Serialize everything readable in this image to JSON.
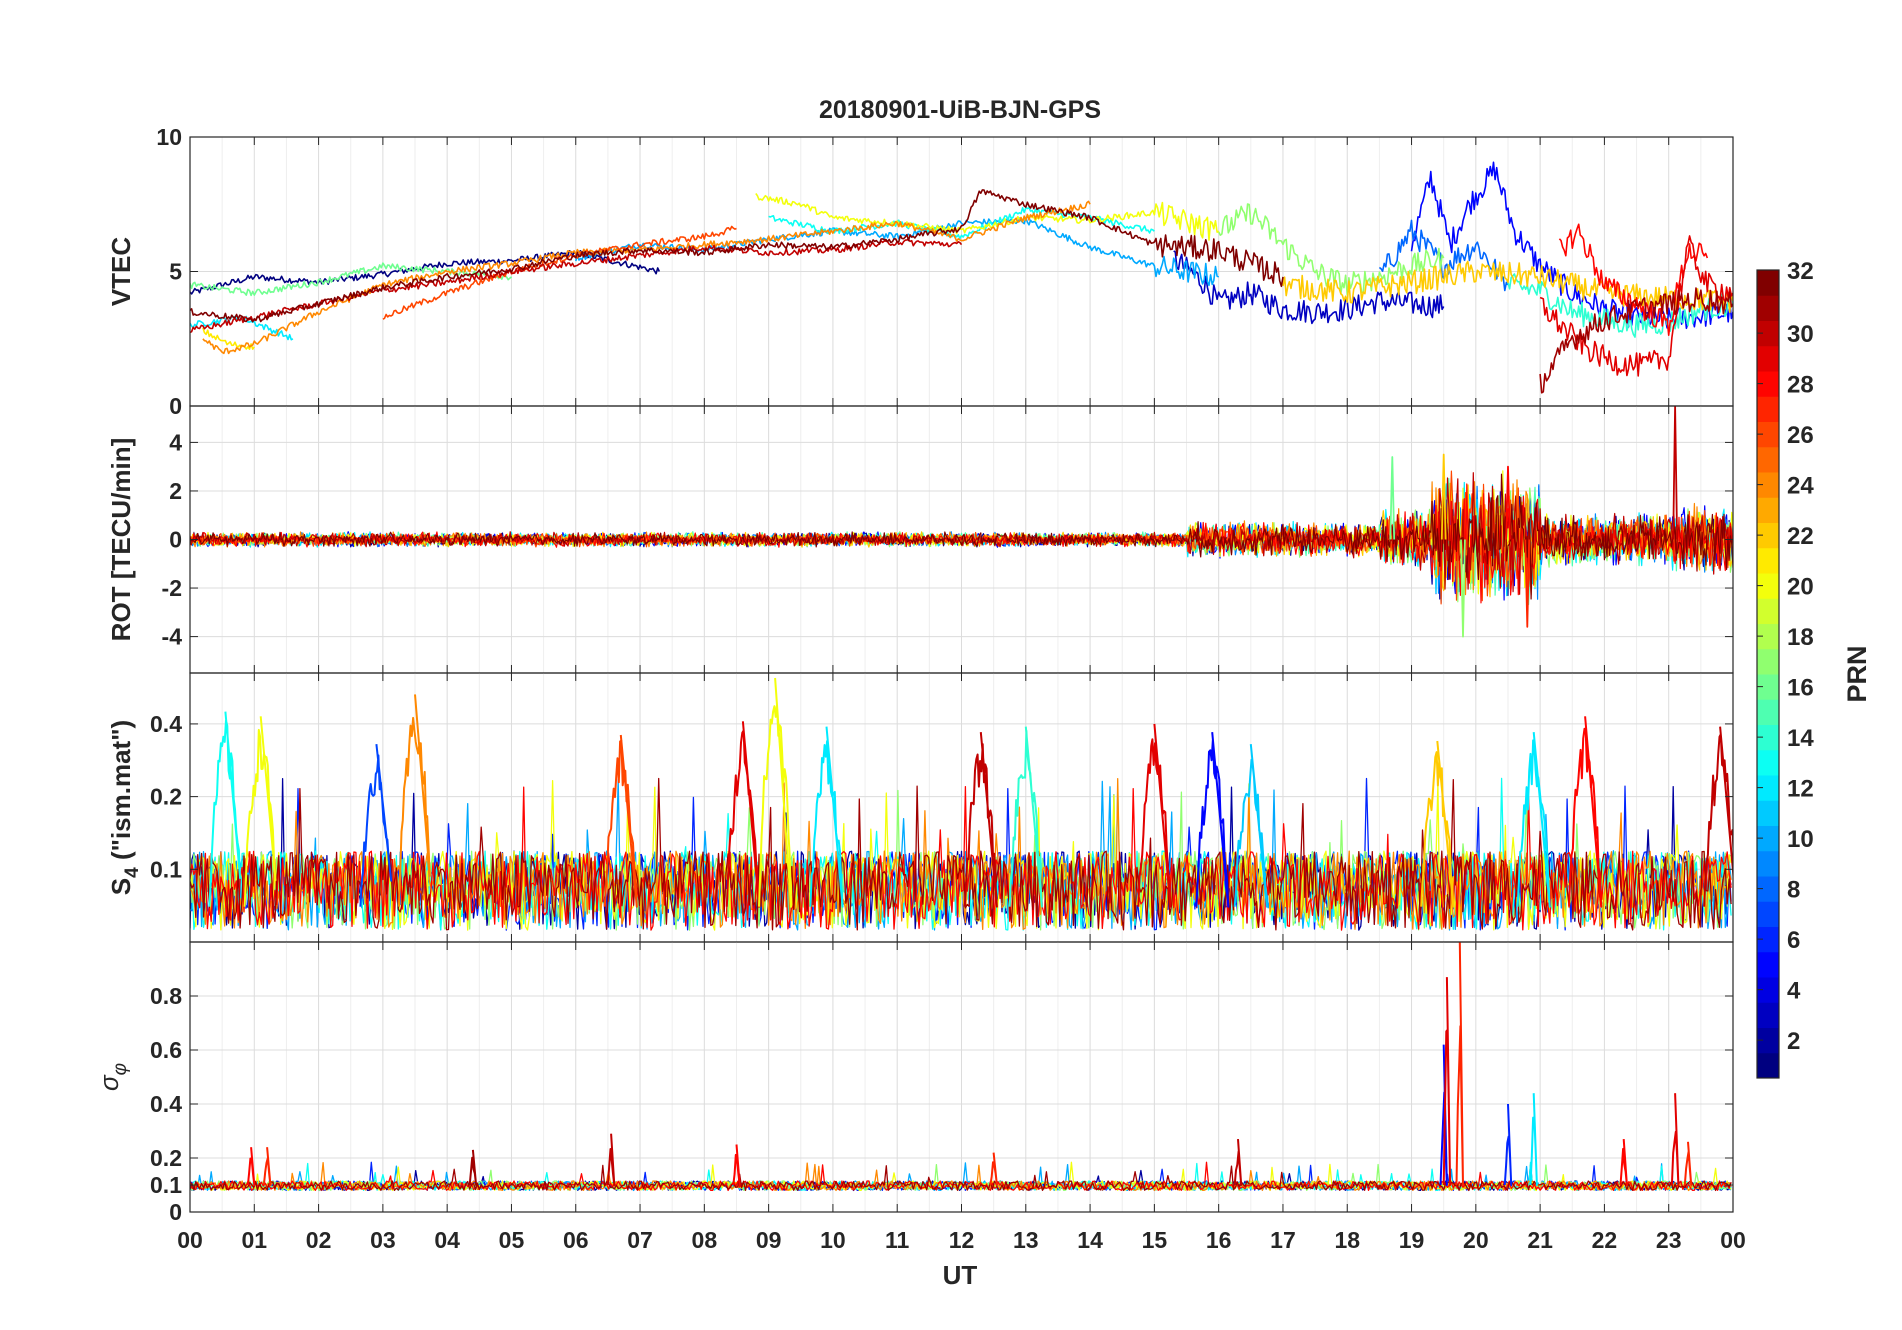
{
  "figure": {
    "title": "20180901-UiB-BJN-GPS",
    "xlabel": "UT",
    "x_tick_labels": [
      "00",
      "01",
      "02",
      "03",
      "04",
      "05",
      "06",
      "07",
      "08",
      "09",
      "10",
      "11",
      "12",
      "13",
      "14",
      "15",
      "16",
      "17",
      "18",
      "19",
      "20",
      "21",
      "22",
      "23",
      "00"
    ],
    "colorbar": {
      "label": "PRN",
      "colormap": "jet",
      "range": [
        1,
        32
      ],
      "ticks": [
        2,
        4,
        6,
        8,
        10,
        12,
        14,
        16,
        18,
        20,
        22,
        24,
        26,
        28,
        30,
        32
      ]
    }
  },
  "chart_data": [
    {
      "type": "line",
      "id": "vtec",
      "ylabel": "VTEC",
      "xlim": [
        0,
        24
      ],
      "ylim": [
        0,
        10
      ],
      "yticks": [
        0,
        5,
        10
      ],
      "grid": true,
      "series": [
        {
          "prn": 1,
          "x": [
            0.0,
            1.0,
            2.0,
            3.0,
            4.0,
            5.0,
            6.0,
            7.3
          ],
          "y": [
            4.2,
            4.8,
            4.6,
            4.9,
            5.3,
            5.4,
            5.7,
            5.0
          ]
        },
        {
          "prn": 3,
          "x": [
            15.3,
            15.8,
            16.0,
            16.5,
            17.0,
            17.5,
            18.0,
            18.5,
            19.0,
            19.5
          ],
          "y": [
            5.5,
            4.5,
            3.8,
            4.2,
            3.6,
            3.5,
            3.6,
            3.9,
            3.8,
            3.7
          ]
        },
        {
          "prn": 5,
          "x": [
            19.0,
            19.3,
            19.6,
            19.9,
            20.3,
            20.6,
            21.0,
            21.5,
            22.0,
            22.5,
            23.0,
            24.0
          ],
          "y": [
            6.0,
            8.5,
            6.0,
            7.5,
            8.8,
            6.5,
            5.2,
            4.2,
            3.6,
            3.3,
            3.2,
            3.5
          ]
        },
        {
          "prn": 8,
          "x": [
            18.5,
            19.0,
            19.5,
            20.0,
            20.5
          ],
          "y": [
            4.8,
            6.5,
            5.2,
            6.0,
            4.5
          ]
        },
        {
          "prn": 10,
          "x": [
            6.0,
            7.0,
            8.0,
            9.0,
            10.0,
            11.0,
            12.0,
            13.0,
            14.0,
            15.0,
            16.0
          ],
          "y": [
            5.5,
            6.0,
            5.8,
            6.2,
            6.5,
            6.3,
            6.8,
            6.9,
            5.9,
            5.2,
            4.8
          ]
        },
        {
          "prn": 12,
          "x": [
            0.0,
            0.8,
            1.6
          ],
          "y": [
            3.0,
            3.3,
            2.5
          ]
        },
        {
          "prn": 13,
          "x": [
            9.0,
            10.0,
            11.0,
            12.0,
            13.0,
            14.0,
            15.0
          ],
          "y": [
            7.0,
            6.5,
            6.8,
            6.3,
            7.3,
            7.0,
            6.5
          ]
        },
        {
          "prn": 14,
          "x": [
            20.5,
            21.0,
            21.5,
            22.0,
            22.5,
            23.0,
            23.5,
            24.0
          ],
          "y": [
            4.5,
            4.3,
            3.5,
            3.2,
            3.0,
            3.1,
            3.6,
            3.8
          ]
        },
        {
          "prn": 16,
          "x": [
            0.0,
            1.0,
            2.0,
            3.0,
            4.0,
            5.0
          ],
          "y": [
            4.5,
            4.2,
            4.6,
            5.2,
            5.0,
            4.8
          ]
        },
        {
          "prn": 17,
          "x": [
            16.0,
            16.5,
            17.0,
            17.5,
            18.0,
            18.5,
            19.0,
            19.5
          ],
          "y": [
            6.5,
            7.2,
            6.0,
            5.0,
            4.5,
            4.8,
            5.2,
            5.5
          ]
        },
        {
          "prn": 20,
          "x": [
            8.8,
            9.5,
            10.0,
            11.0,
            12.0,
            13.0,
            14.0,
            15.0,
            16.0
          ],
          "y": [
            7.8,
            7.5,
            7.0,
            6.8,
            6.5,
            7.0,
            6.9,
            7.2,
            6.5
          ]
        },
        {
          "prn": 21,
          "x": [
            0.2,
            0.6,
            1.0
          ],
          "y": [
            2.8,
            2.3,
            2.2
          ]
        },
        {
          "prn": 22,
          "x": [
            17.0,
            18.0,
            19.0,
            20.0,
            21.0,
            22.0,
            23.0,
            24.0
          ],
          "y": [
            4.5,
            4.2,
            4.6,
            5.0,
            4.8,
            4.2,
            4.0,
            3.9
          ]
        },
        {
          "prn": 24,
          "x": [
            0.2,
            0.5,
            1.0,
            2.0,
            3.0,
            4.0,
            5.0,
            6.0,
            7.0,
            8.0,
            9.0,
            10.0,
            11.0,
            12.0,
            13.0,
            14.0
          ],
          "y": [
            2.5,
            2.0,
            2.3,
            3.5,
            4.5,
            5.0,
            5.3,
            5.7,
            5.8,
            6.0,
            6.2,
            6.5,
            6.8,
            6.2,
            7.0,
            7.5
          ]
        },
        {
          "prn": 26,
          "x": [
            3.0,
            4.0,
            5.0,
            6.0,
            7.0,
            8.0,
            8.5
          ],
          "y": [
            3.3,
            4.2,
            5.0,
            5.6,
            6.0,
            6.3,
            6.6
          ]
        },
        {
          "prn": 28,
          "x": [
            21.3,
            21.6,
            22.0,
            22.5,
            23.0,
            23.3,
            23.6
          ],
          "y": [
            5.8,
            6.5,
            4.5,
            3.8,
            3.0,
            5.8,
            5.5
          ]
        },
        {
          "prn": 29,
          "x": [
            21.0,
            21.4,
            21.8,
            22.2,
            22.6,
            23.0,
            23.3,
            23.6,
            24.0
          ],
          "y": [
            3.8,
            2.8,
            2.0,
            1.6,
            1.5,
            1.8,
            6.0,
            4.5,
            4.2
          ]
        },
        {
          "prn": 30,
          "x": [
            0.0,
            1.0,
            2.0,
            3.0,
            4.0,
            5.0,
            6.0,
            7.0,
            8.0,
            9.0,
            10.0,
            11.0,
            12.0
          ],
          "y": [
            2.8,
            3.3,
            3.8,
            4.3,
            4.6,
            5.0,
            5.3,
            5.6,
            5.9,
            5.7,
            5.8,
            6.1,
            6.0
          ]
        },
        {
          "prn": 31,
          "x": [
            21.0,
            21.2,
            21.5,
            22.0,
            22.5,
            23.0,
            23.5,
            24.0
          ],
          "y": [
            0.8,
            1.5,
            2.5,
            3.2,
            3.6,
            3.8,
            4.0,
            3.8
          ]
        },
        {
          "prn": 32,
          "x": [
            0.0,
            1.0,
            2.0,
            3.0,
            4.0,
            5.0,
            6.0,
            7.0,
            8.0,
            9.0,
            10.0,
            11.0,
            12.0,
            12.3,
            13.0,
            14.0,
            15.0,
            16.0,
            17.0
          ],
          "y": [
            3.5,
            3.2,
            3.8,
            4.4,
            4.8,
            5.1,
            5.6,
            5.8,
            5.7,
            6.0,
            5.9,
            6.2,
            6.6,
            8.0,
            7.5,
            7.0,
            6.0,
            5.8,
            4.8
          ]
        }
      ]
    },
    {
      "type": "line",
      "id": "rot",
      "ylabel": "ROT [TECU/min]",
      "xlim": [
        0,
        24
      ],
      "ylim": [
        -5.5,
        5.5
      ],
      "yticks": [
        -4,
        -2,
        0,
        2,
        4
      ],
      "grid": true,
      "noise_envelope": [
        {
          "from": 0.0,
          "to": 15.5,
          "amplitude": 0.25
        },
        {
          "from": 15.5,
          "to": 18.5,
          "amplitude": 0.6
        },
        {
          "from": 18.5,
          "to": 19.3,
          "amplitude": 1.0
        },
        {
          "from": 19.3,
          "to": 21.0,
          "amplitude": 2.2
        },
        {
          "from": 21.0,
          "to": 23.0,
          "amplitude": 0.9
        },
        {
          "from": 23.0,
          "to": 24.0,
          "amplitude": 1.2
        }
      ],
      "peaks": [
        {
          "x": 19.8,
          "y": -4.0,
          "prn": 17
        },
        {
          "x": 19.5,
          "y": 3.5,
          "prn": 22
        },
        {
          "x": 23.1,
          "y": 5.5,
          "prn": 30
        },
        {
          "x": 18.7,
          "y": 3.4,
          "prn": 16
        },
        {
          "x": 20.8,
          "y": -3.6,
          "prn": 27
        },
        {
          "x": 20.5,
          "y": 3.0,
          "prn": 28
        }
      ]
    },
    {
      "type": "line",
      "id": "s4",
      "ylabel": "S4 (\"ism.mat\")",
      "ylabel_main": "S",
      "ylabel_sub": "4",
      "ylabel_rest": " (\"ism.mat\")",
      "y_axis": "logarithmic",
      "xlim": [
        0,
        24
      ],
      "ylim": [
        0.05,
        0.65
      ],
      "yticks": [
        0.1,
        0.2,
        0.4
      ],
      "grid": true,
      "baseline": 0.07,
      "peaks": [
        {
          "x": 0.55,
          "y": 0.45,
          "prn": 13
        },
        {
          "x": 1.1,
          "y": 0.43,
          "prn": 20
        },
        {
          "x": 3.5,
          "y": 0.53,
          "prn": 24
        },
        {
          "x": 2.9,
          "y": 0.33,
          "prn": 7
        },
        {
          "x": 6.7,
          "y": 0.36,
          "prn": 26
        },
        {
          "x": 8.6,
          "y": 0.41,
          "prn": 29
        },
        {
          "x": 9.1,
          "y": 0.62,
          "prn": 20
        },
        {
          "x": 9.9,
          "y": 0.39,
          "prn": 12
        },
        {
          "x": 12.3,
          "y": 0.37,
          "prn": 30
        },
        {
          "x": 13.0,
          "y": 0.39,
          "prn": 14
        },
        {
          "x": 15.0,
          "y": 0.4,
          "prn": 29
        },
        {
          "x": 15.9,
          "y": 0.37,
          "prn": 5
        },
        {
          "x": 16.5,
          "y": 0.33,
          "prn": 11
        },
        {
          "x": 19.4,
          "y": 0.34,
          "prn": 22
        },
        {
          "x": 20.9,
          "y": 0.37,
          "prn": 12
        },
        {
          "x": 21.7,
          "y": 0.43,
          "prn": 28
        },
        {
          "x": 23.8,
          "y": 0.39,
          "prn": 30
        }
      ]
    },
    {
      "type": "line",
      "id": "sigma_phi",
      "ylabel": "σ φ",
      "ylabel_main": "σ",
      "ylabel_sub": "φ",
      "xlim": [
        0,
        24
      ],
      "ylim": [
        0,
        1
      ],
      "yticks": [
        0,
        0.1,
        0.2,
        0.4,
        0.6,
        0.8
      ],
      "ytick_labels": [
        "0",
        "0.1",
        "0.2",
        "0.4",
        "0.6",
        "0.8"
      ],
      "grid": true,
      "baseline": 0.1,
      "peaks": [
        {
          "x": 0.95,
          "y": 0.24,
          "prn": 28
        },
        {
          "x": 1.2,
          "y": 0.24,
          "prn": 27
        },
        {
          "x": 4.4,
          "y": 0.23,
          "prn": 31
        },
        {
          "x": 6.55,
          "y": 0.29,
          "prn": 30
        },
        {
          "x": 8.5,
          "y": 0.25,
          "prn": 28
        },
        {
          "x": 12.5,
          "y": 0.22,
          "prn": 27
        },
        {
          "x": 16.3,
          "y": 0.27,
          "prn": 30
        },
        {
          "x": 19.5,
          "y": 0.62,
          "prn": 5
        },
        {
          "x": 19.55,
          "y": 0.87,
          "prn": 29
        },
        {
          "x": 19.75,
          "y": 1.0,
          "prn": 27
        },
        {
          "x": 20.5,
          "y": 0.4,
          "prn": 6
        },
        {
          "x": 20.9,
          "y": 0.44,
          "prn": 12
        },
        {
          "x": 22.3,
          "y": 0.27,
          "prn": 28
        },
        {
          "x": 23.1,
          "y": 0.44,
          "prn": 29
        },
        {
          "x": 23.3,
          "y": 0.26,
          "prn": 27
        }
      ]
    }
  ]
}
